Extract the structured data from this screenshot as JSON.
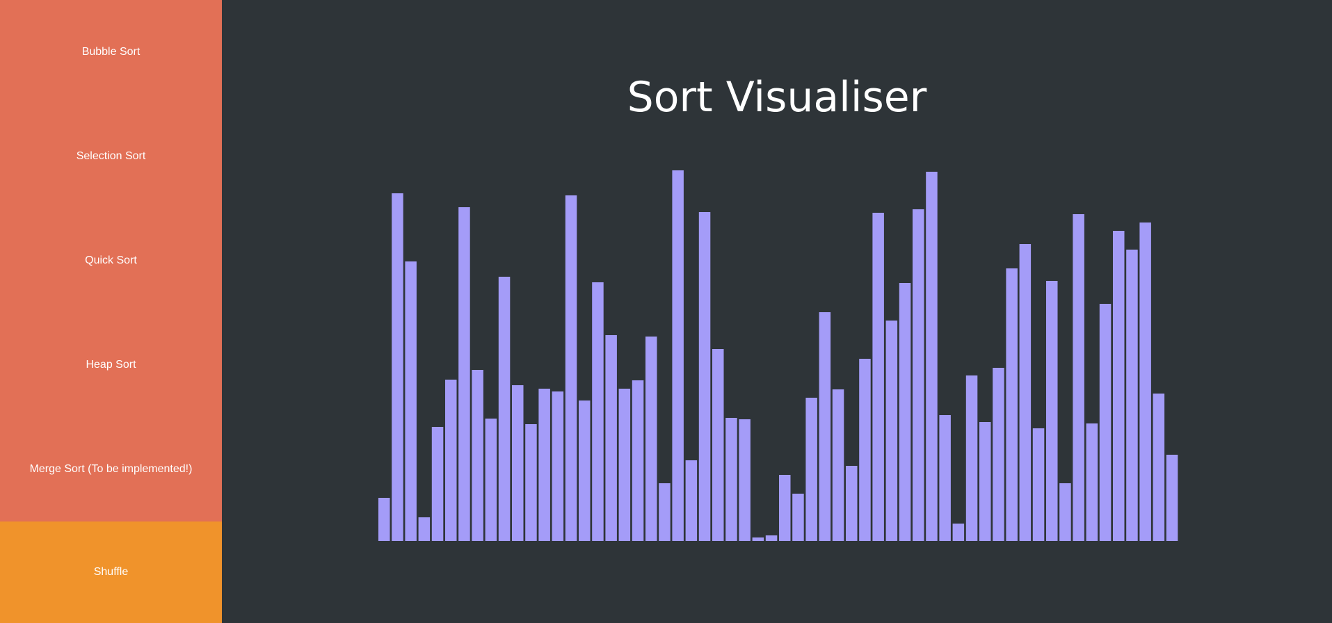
{
  "sidebar": {
    "bubble_sort": "Bubble Sort",
    "selection_sort": "Selection Sort",
    "quick_sort": "Quick Sort",
    "heap_sort": "Heap Sort",
    "merge_sort": "Merge Sort (To be implemented!)",
    "shuffle": "Shuffle"
  },
  "main": {
    "title": "Sort Visualiser"
  },
  "colors": {
    "sidebar_bg": "#e27056",
    "shuffle_bg": "#f0932b",
    "main_bg": "#2e3438",
    "bar": "#a49cf8"
  },
  "chart_data": {
    "type": "bar",
    "values": [
      62,
      500,
      402,
      34,
      164,
      232,
      480,
      246,
      176,
      380,
      224,
      168,
      219,
      215,
      497,
      202,
      372,
      296,
      219,
      231,
      294,
      83,
      533,
      116,
      473,
      276,
      177,
      175,
      5,
      8,
      95,
      68,
      206,
      329,
      218,
      108,
      262,
      472,
      317,
      371,
      477,
      531,
      181,
      25,
      238,
      171,
      249,
      392,
      427,
      162,
      374,
      83,
      470,
      169,
      341,
      446,
      419,
      458,
      212,
      124
    ],
    "ylim": [
      0,
      540
    ]
  }
}
